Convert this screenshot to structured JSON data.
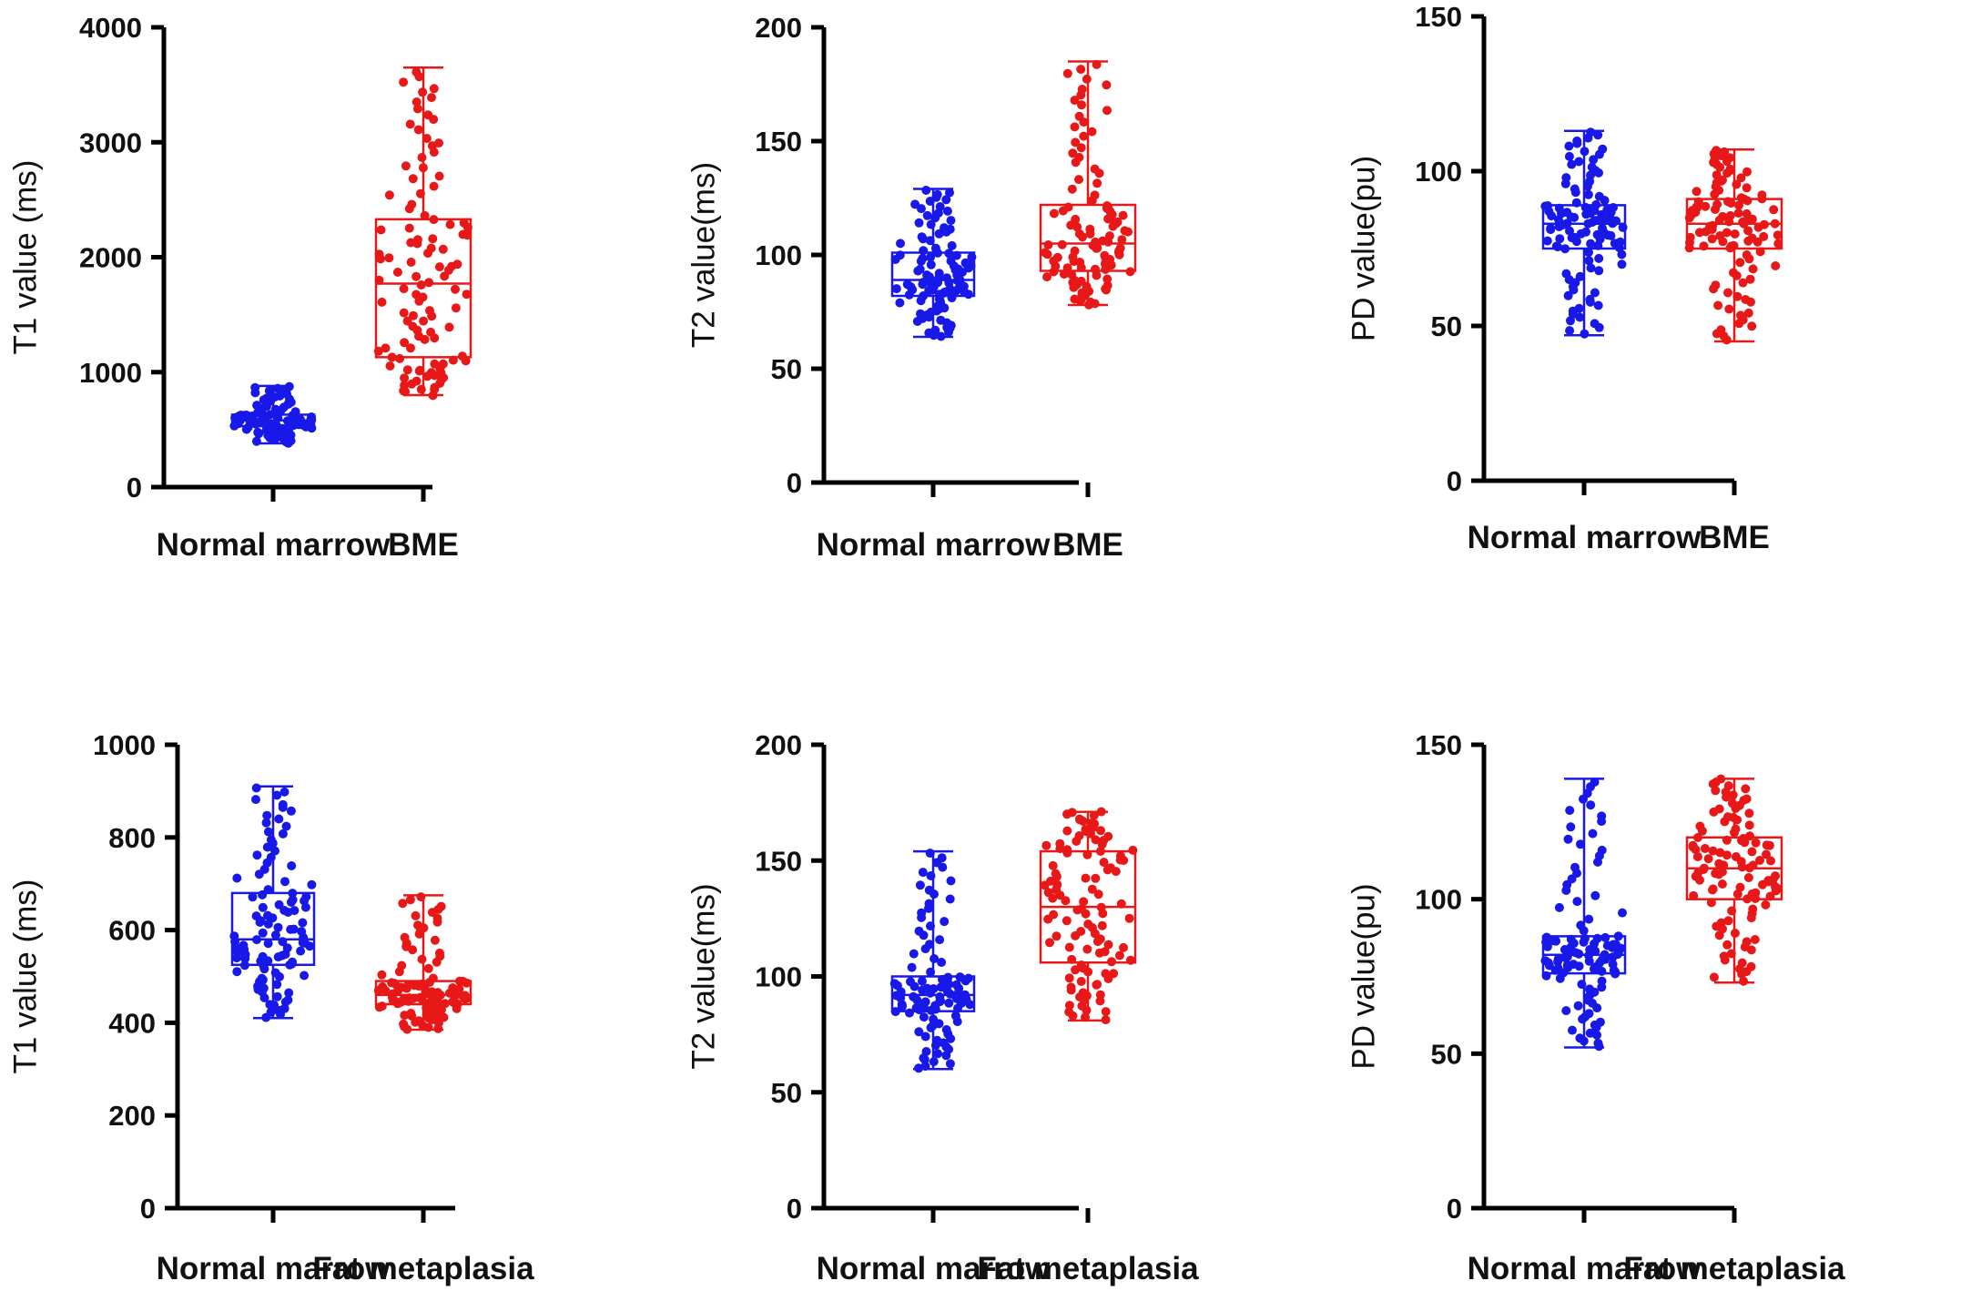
{
  "colors": {
    "normal": "#1818e8",
    "lesion": "#e81818",
    "axis": "#000000"
  },
  "chart_data": [
    {
      "type": "box",
      "ylabel": "T1 value (ms)",
      "ylim": [
        0,
        4000
      ],
      "yticks": [
        "0",
        "1000",
        "2000",
        "3000",
        "4000"
      ],
      "categories": [
        "Normal marrow",
        "BME"
      ],
      "series": [
        {
          "name": "Normal marrow",
          "color_key": "normal",
          "n": 110,
          "min": 380,
          "q1": 530,
          "median": 580,
          "q3": 630,
          "max": 880
        },
        {
          "name": "BME",
          "color_key": "lesion",
          "n": 110,
          "min": 800,
          "q1": 1130,
          "median": 1770,
          "q3": 2330,
          "max": 3650
        }
      ]
    },
    {
      "type": "box",
      "ylabel": "T2 value(ms)",
      "ylim": [
        0,
        200
      ],
      "yticks": [
        "0",
        "50",
        "100",
        "150",
        "200"
      ],
      "categories": [
        "Normal marrow",
        "BME"
      ],
      "series": [
        {
          "name": "Normal marrow",
          "color_key": "normal",
          "n": 110,
          "min": 64,
          "q1": 82,
          "median": 89,
          "q3": 101,
          "max": 129
        },
        {
          "name": "BME",
          "color_key": "lesion",
          "n": 110,
          "min": 78,
          "q1": 93,
          "median": 105,
          "q3": 122,
          "max": 185
        }
      ]
    },
    {
      "type": "box",
      "ylabel": "PD value(pu)",
      "ylim": [
        0,
        150
      ],
      "yticks": [
        "0",
        "50",
        "100",
        "150"
      ],
      "categories": [
        "Normal marrow",
        "BME"
      ],
      "series": [
        {
          "name": "Normal marrow",
          "color_key": "normal",
          "n": 110,
          "min": 47,
          "q1": 75,
          "median": 83,
          "q3": 89,
          "max": 113
        },
        {
          "name": "BME",
          "color_key": "lesion",
          "n": 110,
          "min": 45,
          "q1": 75,
          "median": 83,
          "q3": 91,
          "max": 107
        }
      ]
    },
    {
      "type": "box",
      "ylabel": "T1 value (ms)",
      "ylim": [
        0,
        1000
      ],
      "yticks": [
        "0",
        "200",
        "400",
        "600",
        "800",
        "1000"
      ],
      "categories": [
        "Normal marrow",
        "Fat metaplasia"
      ],
      "series": [
        {
          "name": "Normal marrow",
          "color_key": "normal",
          "n": 110,
          "min": 410,
          "q1": 525,
          "median": 580,
          "q3": 680,
          "max": 910
        },
        {
          "name": "Fat metaplasia",
          "color_key": "lesion",
          "n": 110,
          "min": 385,
          "q1": 440,
          "median": 460,
          "q3": 490,
          "max": 675
        }
      ]
    },
    {
      "type": "box",
      "ylabel": "T2 value(ms)",
      "ylim": [
        0,
        200
      ],
      "yticks": [
        "0",
        "50",
        "100",
        "150",
        "200"
      ],
      "categories": [
        "Normal marrow",
        "Fat metaplasia"
      ],
      "series": [
        {
          "name": "Normal marrow",
          "color_key": "normal",
          "n": 110,
          "min": 60,
          "q1": 85,
          "median": 92,
          "q3": 100,
          "max": 154
        },
        {
          "name": "Fat metaplasia",
          "color_key": "lesion",
          "n": 110,
          "min": 81,
          "q1": 106,
          "median": 130,
          "q3": 154,
          "max": 171
        }
      ]
    },
    {
      "type": "box",
      "ylabel": "PD value(pu)",
      "ylim": [
        0,
        150
      ],
      "yticks": [
        "0",
        "50",
        "100",
        "150"
      ],
      "categories": [
        "Normal marrow",
        "Fat metaplasia"
      ],
      "series": [
        {
          "name": "Normal marrow",
          "color_key": "normal",
          "n": 110,
          "min": 52,
          "q1": 76,
          "median": 82,
          "q3": 88,
          "max": 139
        },
        {
          "name": "Fat metaplasia",
          "color_key": "lesion",
          "n": 110,
          "min": 73,
          "q1": 100,
          "median": 110,
          "q3": 120,
          "max": 139
        }
      ]
    }
  ]
}
